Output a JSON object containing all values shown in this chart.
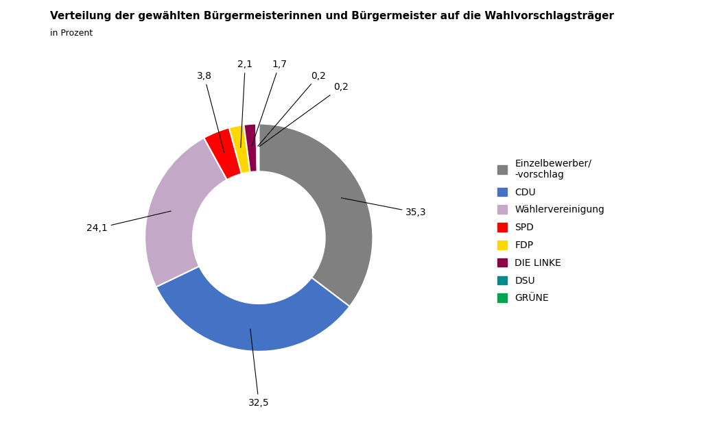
{
  "title": "Verteilung der gewählten Bürgermeisterinnen und Bürgermeister auf die Wahlvorschlagsträger",
  "subtitle": "in Prozent",
  "labels": [
    "Einzelbewerber/\n-vorschlag",
    "CDU",
    "Wählervereinigung",
    "SPD",
    "FDP",
    "DIE LINKE",
    "DSU",
    "GRÜNE"
  ],
  "values": [
    35.3,
    32.5,
    24.1,
    3.8,
    2.1,
    1.7,
    0.2,
    0.2
  ],
  "colors": [
    "#808080",
    "#4472C4",
    "#C4A8C8",
    "#FF0000",
    "#FFD700",
    "#8B0046",
    "#008B8B",
    "#00A550"
  ],
  "label_values": [
    "35,3",
    "32,5",
    "24,1",
    "3,8",
    "2,1",
    "1,7",
    "0,2",
    "0,2"
  ],
  "bg_color": "#FFFFFF"
}
